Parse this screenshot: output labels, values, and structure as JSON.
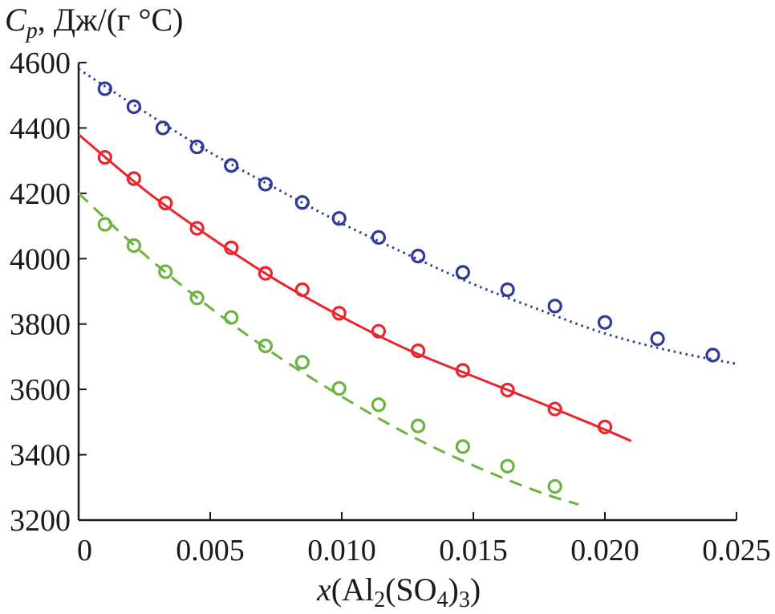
{
  "chart_data": {
    "type": "scatter",
    "title": "",
    "ylabel": {
      "symbol": "C",
      "subscript": "p",
      "units": ", Дж/(г °С)"
    },
    "xlabel": {
      "prefix": "x",
      "open": "(Al",
      "sub1": "2",
      "mid": "(SO",
      "sub2": "4",
      "close": ")",
      "sub3": "3",
      "end": ")"
    },
    "xlim": [
      0,
      0.025
    ],
    "ylim": [
      3200,
      4600
    ],
    "xticks": [
      0,
      0.005,
      0.01,
      0.015,
      0.02,
      0.025
    ],
    "xtick_labels": [
      "0",
      "0.005",
      "0.010",
      "0.015",
      "0.020",
      "0.025"
    ],
    "yticks": [
      3200,
      3400,
      3600,
      3800,
      4000,
      4200,
      4400,
      4600
    ],
    "ytick_labels": [
      "3200",
      "3400",
      "3600",
      "3800",
      "4000",
      "4200",
      "4400",
      "4600"
    ],
    "grid": false,
    "series": [
      {
        "name": "blue",
        "color": "#2e3a9a",
        "line_style": "dotted",
        "points": [
          [
            0.001,
            4520
          ],
          [
            0.0021,
            4465
          ],
          [
            0.0032,
            4400
          ],
          [
            0.0045,
            4342
          ],
          [
            0.0058,
            4285
          ],
          [
            0.0071,
            4228
          ],
          [
            0.0085,
            4172
          ],
          [
            0.0099,
            4123
          ],
          [
            0.0114,
            4065
          ],
          [
            0.0129,
            4008
          ],
          [
            0.0146,
            3958
          ],
          [
            0.0163,
            3905
          ],
          [
            0.0181,
            3855
          ],
          [
            0.02,
            3805
          ],
          [
            0.022,
            3755
          ],
          [
            0.0241,
            3705
          ]
        ],
        "fit": [
          [
            0.0,
            4580
          ],
          [
            0.0025,
            4450
          ],
          [
            0.005,
            4325
          ],
          [
            0.0075,
            4215
          ],
          [
            0.01,
            4108
          ],
          [
            0.0125,
            4013
          ],
          [
            0.015,
            3922
          ],
          [
            0.0175,
            3844
          ],
          [
            0.02,
            3771
          ],
          [
            0.0225,
            3718
          ],
          [
            0.025,
            3678
          ]
        ]
      },
      {
        "name": "red",
        "color": "#e8262d",
        "line_style": "solid",
        "points": [
          [
            0.001,
            4310
          ],
          [
            0.0021,
            4245
          ],
          [
            0.0033,
            4170
          ],
          [
            0.0045,
            4093
          ],
          [
            0.0058,
            4033
          ],
          [
            0.0071,
            3955
          ],
          [
            0.0085,
            3905
          ],
          [
            0.0099,
            3833
          ],
          [
            0.0114,
            3778
          ],
          [
            0.0129,
            3718
          ],
          [
            0.0146,
            3658
          ],
          [
            0.0163,
            3598
          ],
          [
            0.0181,
            3540
          ],
          [
            0.02,
            3485
          ]
        ],
        "fit": [
          [
            0.0,
            4380
          ],
          [
            0.0025,
            4211
          ],
          [
            0.005,
            4066
          ],
          [
            0.0075,
            3935
          ],
          [
            0.01,
            3822
          ],
          [
            0.0125,
            3722
          ],
          [
            0.015,
            3640
          ],
          [
            0.0175,
            3560
          ],
          [
            0.0195,
            3494
          ],
          [
            0.021,
            3442
          ]
        ]
      },
      {
        "name": "green",
        "color": "#6bb33f",
        "line_style": "dashed",
        "points": [
          [
            0.001,
            4105
          ],
          [
            0.0021,
            4040
          ],
          [
            0.0033,
            3960
          ],
          [
            0.0045,
            3880
          ],
          [
            0.0058,
            3820
          ],
          [
            0.0071,
            3733
          ],
          [
            0.0085,
            3683
          ],
          [
            0.0099,
            3603
          ],
          [
            0.0114,
            3553
          ],
          [
            0.0129,
            3488
          ],
          [
            0.0146,
            3425
          ],
          [
            0.0163,
            3365
          ],
          [
            0.0181,
            3303
          ]
        ],
        "fit": [
          [
            0.0,
            4200
          ],
          [
            0.0025,
            4013
          ],
          [
            0.005,
            3850
          ],
          [
            0.0075,
            3705
          ],
          [
            0.01,
            3578
          ],
          [
            0.0125,
            3463
          ],
          [
            0.015,
            3367
          ],
          [
            0.0175,
            3286
          ],
          [
            0.019,
            3248
          ]
        ]
      }
    ]
  }
}
